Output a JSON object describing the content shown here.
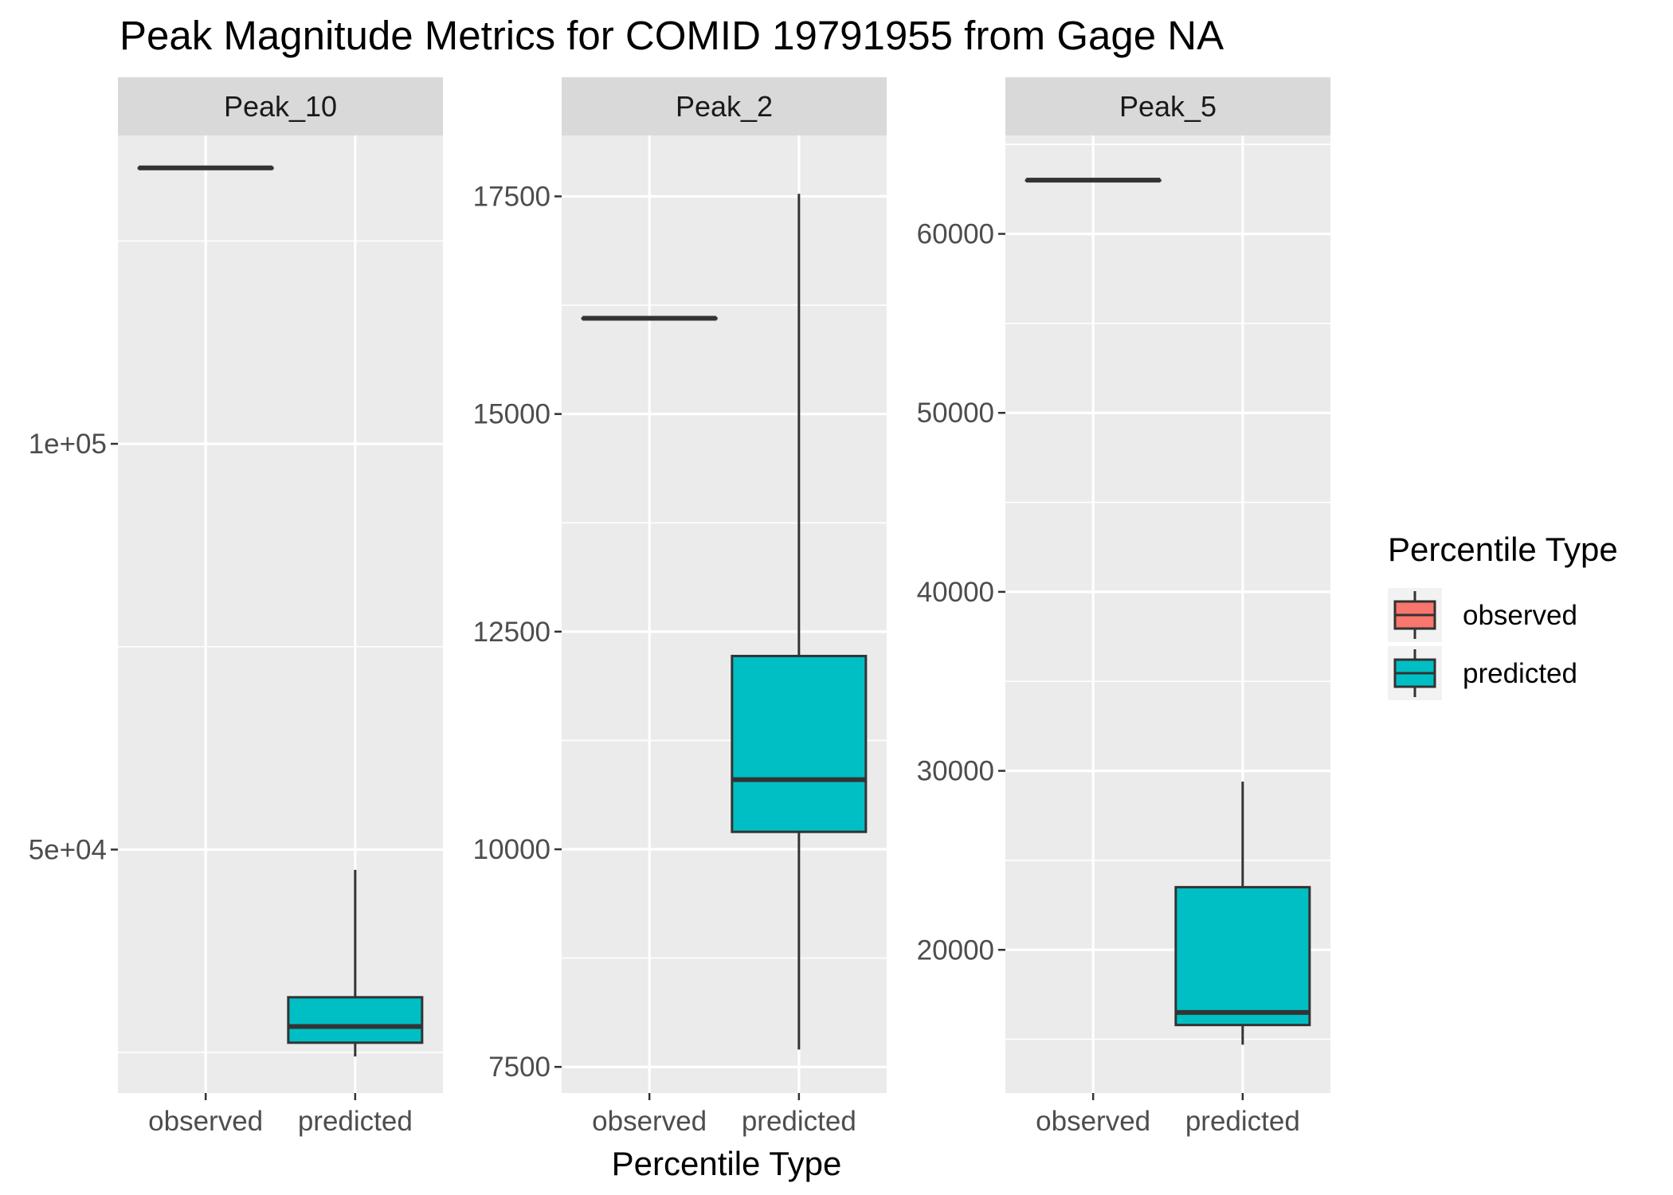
{
  "chart_data": {
    "type": "boxplot",
    "title": "Peak Magnitude Metrics for COMID 19791955 from Gage NA",
    "xlabel": "Percentile Type",
    "ylabel": "",
    "categories": [
      "observed",
      "predicted"
    ],
    "legend": {
      "title": "Percentile Type",
      "position": "right",
      "entries": [
        {
          "label": "observed",
          "color": "#F8766D"
        },
        {
          "label": "predicted",
          "color": "#00BFC4"
        }
      ]
    },
    "facets": [
      {
        "strip": "Peak_10",
        "ylim": [
          20000,
          138000
        ],
        "ticks": [
          {
            "value": 50000,
            "label": "5e+04"
          },
          {
            "value": 100000,
            "label": "1e+05"
          }
        ],
        "minor_ticks": [
          25000,
          75000,
          125000
        ],
        "boxes": [
          {
            "category": "observed",
            "min": 134000,
            "q1": 134000,
            "median": 134000,
            "q3": 134000,
            "max": 134000
          },
          {
            "category": "predicted",
            "min": 24500,
            "q1": 26200,
            "median": 28200,
            "q3": 31800,
            "max": 47500
          }
        ]
      },
      {
        "strip": "Peak_2",
        "ylim": [
          7200,
          18200
        ],
        "ticks": [
          {
            "value": 7500,
            "label": "7500"
          },
          {
            "value": 10000,
            "label": "10000"
          },
          {
            "value": 12500,
            "label": "12500"
          },
          {
            "value": 15000,
            "label": "15000"
          },
          {
            "value": 17500,
            "label": "17500"
          }
        ],
        "minor_ticks": [
          8750,
          11250,
          13750,
          16250
        ],
        "boxes": [
          {
            "category": "observed",
            "min": 16100,
            "q1": 16100,
            "median": 16100,
            "q3": 16100,
            "max": 16100
          },
          {
            "category": "predicted",
            "min": 7700,
            "q1": 10200,
            "median": 10800,
            "q3": 12220,
            "max": 17530
          }
        ]
      },
      {
        "strip": "Peak_5",
        "ylim": [
          12000,
          65500
        ],
        "ticks": [
          {
            "value": 20000,
            "label": "20000"
          },
          {
            "value": 30000,
            "label": "30000"
          },
          {
            "value": 40000,
            "label": "40000"
          },
          {
            "value": 50000,
            "label": "50000"
          },
          {
            "value": 60000,
            "label": "60000"
          }
        ],
        "minor_ticks": [
          15000,
          25000,
          35000,
          45000,
          55000,
          65000
        ],
        "boxes": [
          {
            "category": "observed",
            "min": 63000,
            "q1": 63000,
            "median": 63000,
            "q3": 63000,
            "max": 63000
          },
          {
            "category": "predicted",
            "min": 14700,
            "q1": 15800,
            "median": 16500,
            "q3": 23500,
            "max": 29400
          }
        ]
      }
    ]
  }
}
